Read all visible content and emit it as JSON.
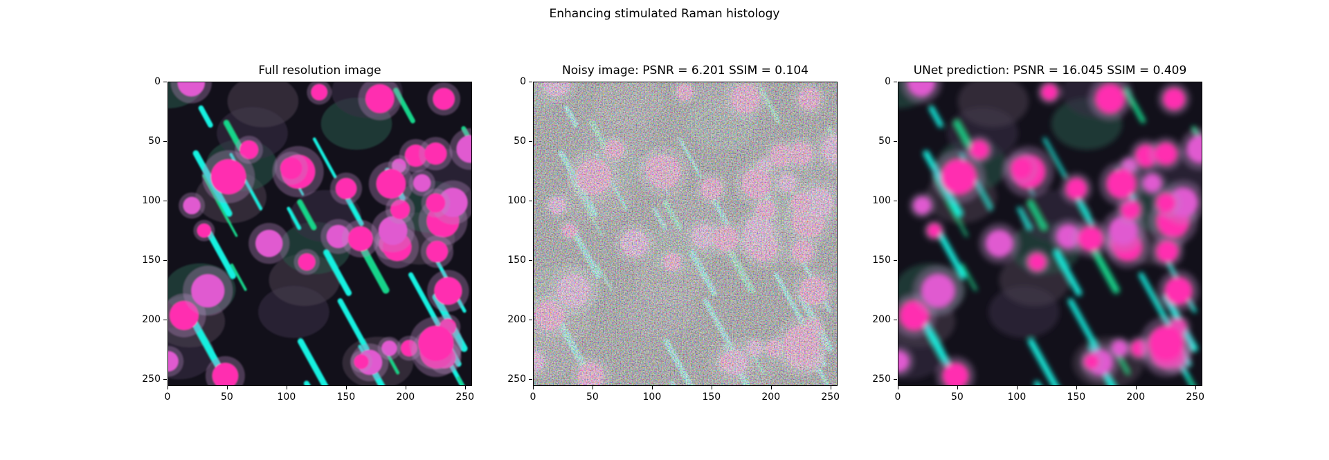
{
  "figure": {
    "suptitle": "Enhancing stimulated Raman histology",
    "panels": [
      {
        "title": "Full resolution image",
        "style": "clean"
      },
      {
        "title": "Noisy image: PSNR = 6.201 SSIM = 0.104",
        "style": "noisy"
      },
      {
        "title": "UNet prediction: PSNR = 16.045 SSIM = 0.409",
        "style": "smooth"
      }
    ],
    "yticks": [
      "0",
      "50",
      "100",
      "150",
      "200",
      "250"
    ],
    "xticks": [
      "0",
      "50",
      "100",
      "150",
      "200",
      "250"
    ],
    "axis_range": [
      0,
      256
    ],
    "colors": {
      "magenta": "#ff2fb0",
      "cyan": "#16f0e0",
      "green": "#12d48a",
      "background": "#12101a"
    }
  }
}
